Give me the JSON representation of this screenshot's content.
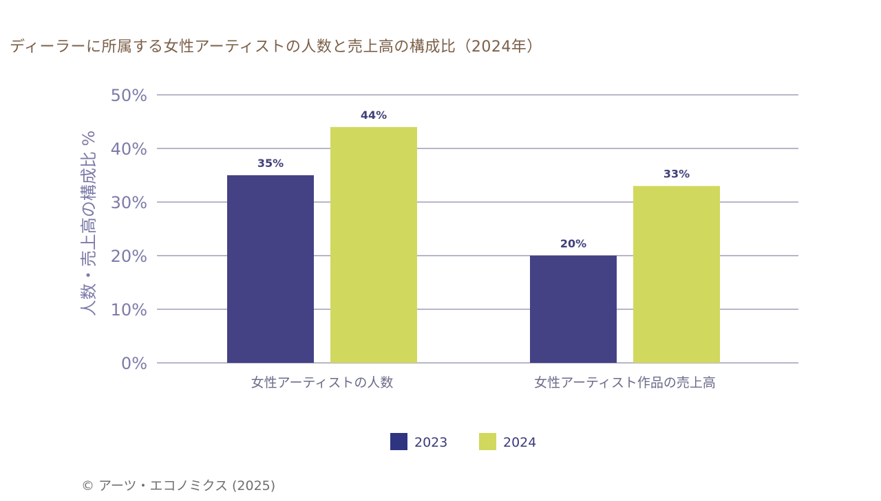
{
  "title": "ディーラーに所属する女性アーティストの人数と売上高の構成比（2024年）",
  "credit": "© アーツ・エコノミクス (2025)",
  "chart_data": {
    "type": "bar",
    "title": "ディーラーに所属する女性アーティストの人数と売上高の構成比（2024年）",
    "ylabel": "人数・売上高の構成比 %",
    "xlabel": "",
    "ylim": [
      0,
      50
    ],
    "yticks": [
      0,
      10,
      20,
      30,
      40,
      50
    ],
    "ytick_labels": [
      "0%",
      "10%",
      "20%",
      "30%",
      "40%",
      "50%"
    ],
    "grid": true,
    "legend": "bottom",
    "categories": [
      "女性アーティストの人数",
      "女性アーティスト作品の売上高"
    ],
    "series": [
      {
        "name": "2023",
        "values": [
          35,
          20
        ],
        "labels": [
          "35%",
          "20%"
        ],
        "color": "#444185",
        "legend_color": "#2e3480"
      },
      {
        "name": "2024",
        "values": [
          44,
          33
        ],
        "labels": [
          "44%",
          "33%"
        ],
        "color": "#d1d85e"
      }
    ]
  }
}
